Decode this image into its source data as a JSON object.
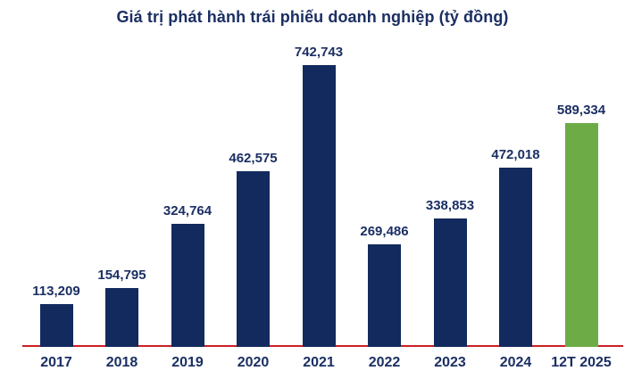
{
  "colors": {
    "bar": "#122a5e",
    "highlight": "#6dab47",
    "axis_line": "#cb2026",
    "text": "#1b2f63"
  },
  "chart_data": {
    "type": "bar",
    "title": "Giá trị phát hành trái phiếu doanh nghiệp (tỷ đồng)",
    "categories": [
      "2017",
      "2018",
      "2019",
      "2020",
      "2021",
      "2022",
      "2023",
      "2024",
      "12T 2025"
    ],
    "values": [
      113209,
      154795,
      324764,
      462575,
      742743,
      269486,
      338853,
      472018,
      589334
    ],
    "value_labels": [
      "113,209",
      "154,795",
      "324,764",
      "462,575",
      "742,743",
      "269,486",
      "338,853",
      "472,018",
      "589,334"
    ],
    "highlight_index": 8,
    "xlabel": "",
    "ylabel": "",
    "ylim": [
      0,
      742743
    ],
    "grid": false,
    "legend": false,
    "baseline_axis_color": "#cb2026"
  }
}
